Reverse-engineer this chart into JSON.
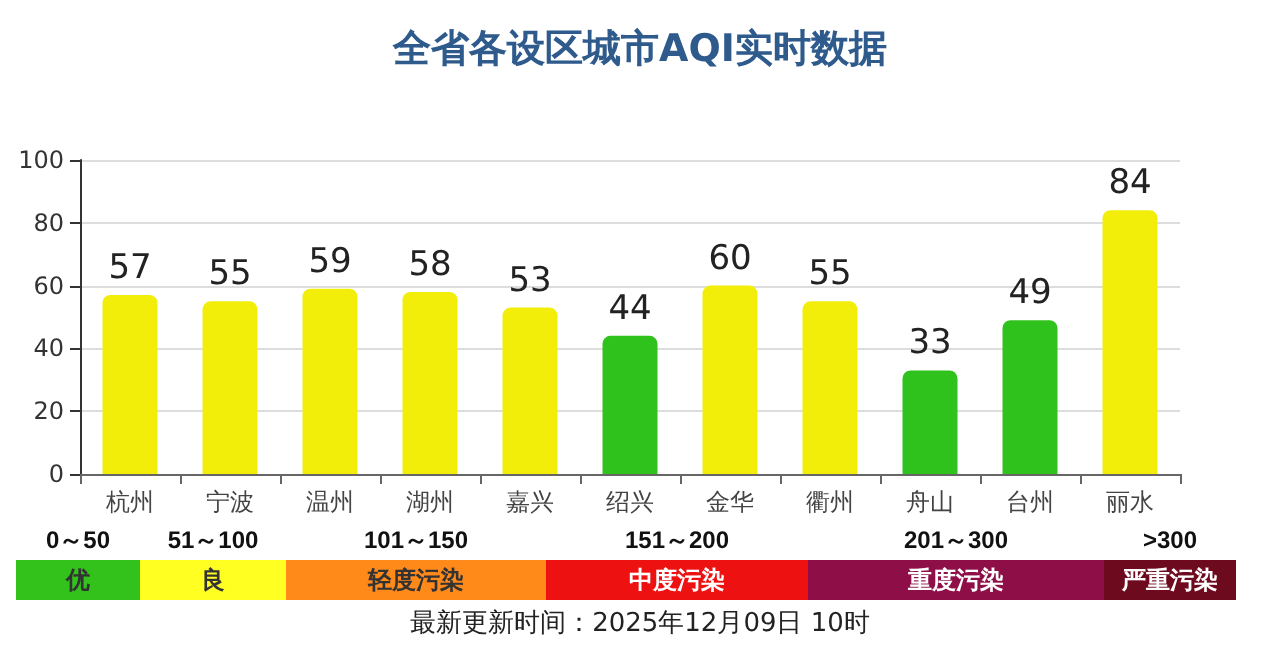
{
  "chart_data": {
    "type": "bar",
    "title": "全省各设区城市AQI实时数据",
    "categories": [
      "杭州",
      "宁波",
      "温州",
      "湖州",
      "嘉兴",
      "绍兴",
      "金华",
      "衢州",
      "舟山",
      "台州",
      "丽水"
    ],
    "values": [
      57,
      55,
      59,
      58,
      53,
      44,
      60,
      55,
      33,
      49,
      84
    ],
    "colors": [
      "#f2ee0a",
      "#f2ee0a",
      "#f2ee0a",
      "#f2ee0a",
      "#f2ee0a",
      "#2fc21c",
      "#f2ee0a",
      "#f2ee0a",
      "#2fc21c",
      "#2fc21c",
      "#f2ee0a"
    ],
    "ylim": [
      0,
      100
    ],
    "yticks": [
      0,
      20,
      40,
      60,
      80,
      100
    ],
    "grid": "y",
    "data_labels": true,
    "annotations": [
      "0～50",
      "优",
      "51～100",
      "良",
      "101～150",
      "轻度污染",
      "151～200",
      "中度污染",
      "201～300",
      "重度污染",
      ">300",
      "严重污染",
      "最新更新时间：2025年12月09日 10时"
    ]
  }
}
